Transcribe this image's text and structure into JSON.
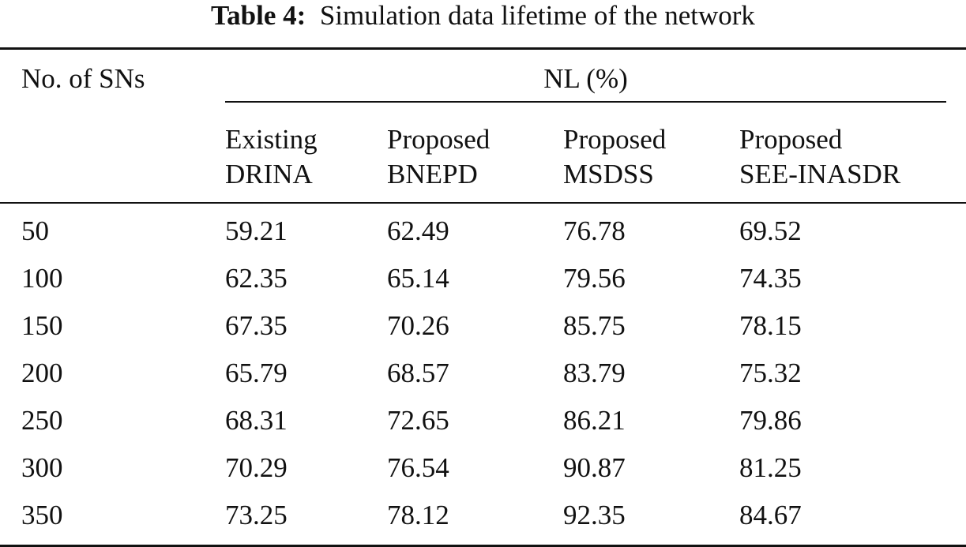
{
  "table": {
    "caption_label": "Table 4:",
    "caption_text": "Simulation data lifetime of the network",
    "stub_header": "No. of SNs",
    "group_header": "NL (%)",
    "columns": [
      {
        "line1": "Existing",
        "line2": "DRINA"
      },
      {
        "line1": "Proposed",
        "line2": "BNEPD"
      },
      {
        "line1": "Proposed",
        "line2": "MSDSS"
      },
      {
        "line1": "Proposed",
        "line2": "SEE-INASDR"
      }
    ],
    "rows": [
      [
        "50",
        "59.21",
        "62.49",
        "76.78",
        "69.52"
      ],
      [
        "100",
        "62.35",
        "65.14",
        "79.56",
        "74.35"
      ],
      [
        "150",
        "67.35",
        "70.26",
        "85.75",
        "78.15"
      ],
      [
        "200",
        "65.79",
        "68.57",
        "83.79",
        "75.32"
      ],
      [
        "250",
        "68.31",
        "72.65",
        "86.21",
        "79.86"
      ],
      [
        "300",
        "70.29",
        "76.54",
        "90.87",
        "81.25"
      ],
      [
        "350",
        "73.25",
        "78.12",
        "92.35",
        "84.67"
      ]
    ]
  }
}
